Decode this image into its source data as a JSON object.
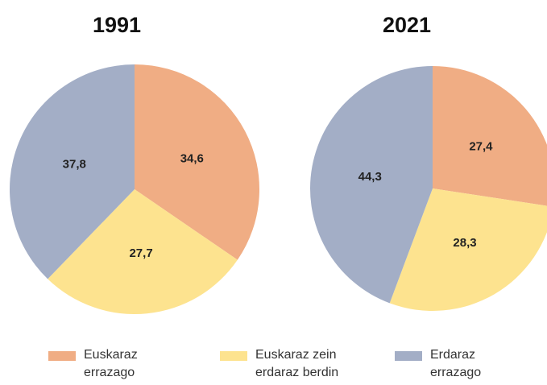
{
  "chart_data": [
    {
      "type": "pie",
      "title": "1991",
      "values": [
        34.6,
        27.7,
        37.8
      ],
      "value_labels": [
        "34,6",
        "27,7",
        "37,8"
      ]
    },
    {
      "type": "pie",
      "title": "2021",
      "values": [
        27.4,
        28.3,
        44.3
      ],
      "value_labels": [
        "27,4",
        "28,3",
        "44,3"
      ]
    }
  ],
  "legend": {
    "categories": [
      "Euskaraz errazago",
      "Euskaraz zein erdaraz berdin",
      "Erdaraz errazago"
    ],
    "colors": [
      "#f0ad84",
      "#fde38f",
      "#a3aec6"
    ]
  }
}
